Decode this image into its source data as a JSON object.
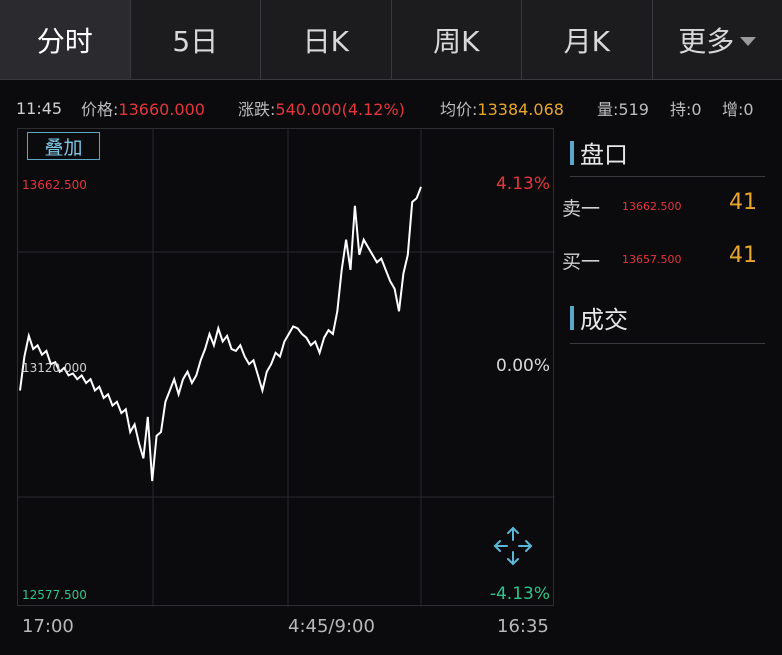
{
  "tabs": [
    {
      "label": "分时",
      "active": true
    },
    {
      "label": "5日"
    },
    {
      "label": "日K"
    },
    {
      "label": "周K"
    },
    {
      "label": "月K"
    },
    {
      "label": "更多"
    }
  ],
  "info": {
    "time": "11:45",
    "price_label": "价格:",
    "price_value": "13660.000",
    "change_label": "涨跌:",
    "change_value": "540.000(4.12%)",
    "avg_label": "均价:",
    "avg_value": "13384.068",
    "volume": "量:519",
    "open_interest": "持:0",
    "increase": "增:0"
  },
  "overlay_button": "叠加",
  "chart_data": {
    "type": "line",
    "y_high_label": "13662.500",
    "y_mid_label": "13120.000",
    "y_low_label": "12577.500",
    "pct_high": "4.13%",
    "pct_mid": "0.00%",
    "pct_low": "-4.13%",
    "x_labels": [
      "17:00",
      "4:45/9:00",
      "16:35"
    ],
    "ylim": [
      12577.5,
      13662.5
    ],
    "points": [
      13120,
      13210,
      13265,
      13230,
      13240,
      13215,
      13225,
      13190,
      13195,
      13170,
      13180,
      13160,
      13165,
      13150,
      13160,
      13140,
      13150,
      13120,
      13130,
      13100,
      13110,
      13080,
      13090,
      13060,
      13070,
      13010,
      13030,
      12980,
      12940,
      13050,
      12880,
      13000,
      13010,
      13090,
      13120,
      13150,
      13110,
      13150,
      13170,
      13140,
      13160,
      13200,
      13230,
      13270,
      13240,
      13285,
      13250,
      13265,
      13230,
      13225,
      13240,
      13210,
      13190,
      13200,
      13160,
      13120,
      13170,
      13190,
      13220,
      13210,
      13250,
      13270,
      13290,
      13285,
      13270,
      13260,
      13240,
      13250,
      13220,
      13260,
      13280,
      13270,
      13330,
      13440,
      13520,
      13440,
      13610,
      13480,
      13520,
      13500,
      13480,
      13460,
      13470,
      13440,
      13410,
      13390,
      13330,
      13430,
      13480,
      13620,
      13630,
      13660
    ]
  },
  "order_book": {
    "title": "盘口",
    "rows": [
      {
        "label": "卖一",
        "price": "13662.500",
        "qty": "41"
      },
      {
        "label": "买一",
        "price": "13657.500",
        "qty": "41"
      }
    ]
  },
  "trades": {
    "title": "成交"
  },
  "colors": {
    "up": "#e4363b",
    "down": "#2fc489",
    "accent": "#5aa7c8",
    "line": "#ffffff",
    "qty": "#e7a52a"
  }
}
